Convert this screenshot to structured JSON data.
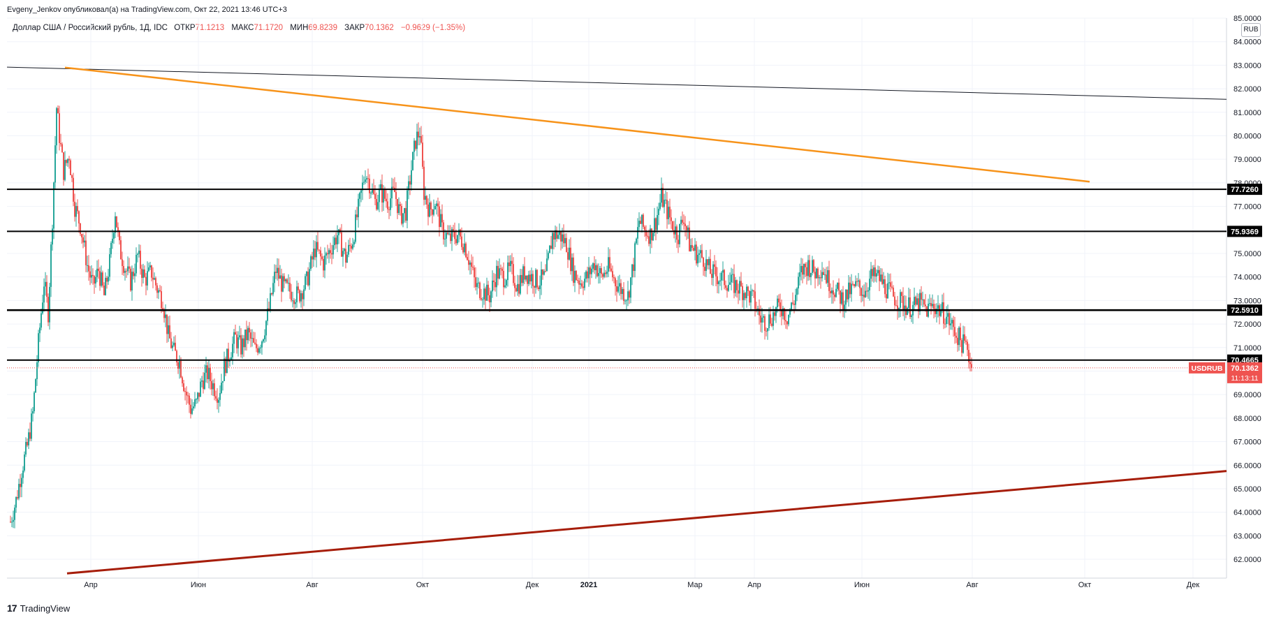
{
  "header": {
    "publisher_line": "Evgeny_Jenkov опубликовал(а) на TradingView.com, Окт 22, 2021 13:46 UTC+3"
  },
  "legend": {
    "symbol_desc": "Доллар США / Российский рубль, 1Д, IDC",
    "open_label": "ОТКР",
    "open_value": "71.1213",
    "high_label": "МАКС",
    "high_value": "71.1720",
    "low_label": "МИН",
    "low_value": "69.8239",
    "close_label": "ЗАКР",
    "close_value": "70.1362",
    "change_value": "−0.9629 (−1.35%)"
  },
  "currency_badge": "RUB",
  "footer": {
    "brand": "TradingView"
  },
  "colors": {
    "up": "#26a69a",
    "down": "#ef5350",
    "resistance_orange": "#f7931a",
    "support_red": "#a61d0a",
    "price_tag": "#ef5350"
  },
  "chart_data": {
    "type": "candlestick",
    "symbol": "USDRUB",
    "interval": "1Д",
    "ylim": [
      61.2,
      85.0
    ],
    "y_ticks": [
      "62.0000",
      "63.0000",
      "64.0000",
      "65.0000",
      "66.0000",
      "67.0000",
      "68.0000",
      "69.0000",
      "70.0000",
      "71.0000",
      "72.0000",
      "73.0000",
      "74.0000",
      "75.0000",
      "76.0000",
      "77.0000",
      "78.0000",
      "79.0000",
      "80.0000",
      "81.0000",
      "82.0000",
      "83.0000",
      "84.0000",
      "85.0000"
    ],
    "x_ticks": [
      "Апр",
      "Июн",
      "Авг",
      "Окт",
      "Дек",
      "2021",
      "Мар",
      "Апр",
      "Июн",
      "Авг",
      "Окт",
      "Дек"
    ],
    "grid": true,
    "horizontal_levels": [
      {
        "value": 77.726,
        "label": "77.7260"
      },
      {
        "value": 75.9369,
        "label": "75.9369"
      },
      {
        "value": 72.591,
        "label": "72.5910"
      },
      {
        "value": 70.4665,
        "label": "70.4665"
      }
    ],
    "last_price": {
      "name": "USDRUB",
      "value": 70.1362,
      "label": "70.1362",
      "countdown": "11:13:11"
    },
    "price_path": [
      [
        0,
        63.6
      ],
      [
        8,
        64.5
      ],
      [
        16,
        65.8
      ],
      [
        24,
        66.8
      ],
      [
        32,
        68.2
      ],
      [
        40,
        71.2
      ],
      [
        48,
        73.8
      ],
      [
        54,
        72.5
      ],
      [
        60,
        76.5
      ],
      [
        66,
        81.2
      ],
      [
        70,
        80.0
      ],
      [
        76,
        78.5
      ],
      [
        84,
        79.2
      ],
      [
        92,
        77.0
      ],
      [
        100,
        76.2
      ],
      [
        110,
        74.5
      ],
      [
        118,
        73.6
      ],
      [
        126,
        74.3
      ],
      [
        134,
        73.2
      ],
      [
        142,
        74.6
      ],
      [
        150,
        76.8
      ],
      [
        156,
        75.2
      ],
      [
        164,
        74.4
      ],
      [
        172,
        73.8
      ],
      [
        182,
        74.9
      ],
      [
        192,
        73.9
      ],
      [
        202,
        74.2
      ],
      [
        210,
        73.5
      ],
      [
        218,
        73.0
      ],
      [
        226,
        71.5
      ],
      [
        234,
        70.8
      ],
      [
        242,
        70.4
      ],
      [
        250,
        69.2
      ],
      [
        258,
        68.4
      ],
      [
        266,
        68.6
      ],
      [
        274,
        69.6
      ],
      [
        282,
        69.9
      ],
      [
        290,
        69.4
      ],
      [
        298,
        69.0
      ],
      [
        306,
        70.2
      ],
      [
        314,
        70.8
      ],
      [
        322,
        71.4
      ],
      [
        330,
        71.0
      ],
      [
        340,
        71.6
      ],
      [
        350,
        70.9
      ],
      [
        360,
        71.4
      ],
      [
        370,
        72.6
      ],
      [
        380,
        74.3
      ],
      [
        390,
        73.6
      ],
      [
        400,
        73.4
      ],
      [
        412,
        73.2
      ],
      [
        424,
        73.8
      ],
      [
        436,
        75.2
      ],
      [
        448,
        74.6
      ],
      [
        458,
        75.2
      ],
      [
        468,
        75.8
      ],
      [
        480,
        74.8
      ],
      [
        490,
        75.6
      ],
      [
        500,
        77.2
      ],
      [
        508,
        78.5
      ],
      [
        514,
        78.0
      ],
      [
        522,
        77.2
      ],
      [
        530,
        77.6
      ],
      [
        540,
        77.2
      ],
      [
        550,
        77.6
      ],
      [
        558,
        76.6
      ],
      [
        566,
        76.8
      ],
      [
        574,
        78.6
      ],
      [
        580,
        79.8
      ],
      [
        586,
        80.2
      ],
      [
        592,
        77.6
      ],
      [
        600,
        76.8
      ],
      [
        608,
        77.2
      ],
      [
        618,
        76.0
      ],
      [
        628,
        75.6
      ],
      [
        640,
        75.8
      ],
      [
        650,
        75.4
      ],
      [
        658,
        74.6
      ],
      [
        666,
        73.6
      ],
      [
        676,
        73.4
      ],
      [
        686,
        73.2
      ],
      [
        696,
        74.2
      ],
      [
        706,
        74.0
      ],
      [
        716,
        74.3
      ],
      [
        726,
        73.6
      ],
      [
        736,
        74.2
      ],
      [
        746,
        74.0
      ],
      [
        756,
        73.8
      ],
      [
        766,
        74.0
      ],
      [
        776,
        75.8
      ],
      [
        786,
        75.8
      ],
      [
        796,
        75.4
      ],
      [
        806,
        74.2
      ],
      [
        816,
        73.8
      ],
      [
        826,
        74.0
      ],
      [
        836,
        74.6
      ],
      [
        846,
        74.0
      ],
      [
        856,
        74.4
      ],
      [
        866,
        73.8
      ],
      [
        876,
        73.4
      ],
      [
        884,
        73.2
      ],
      [
        892,
        74.6
      ],
      [
        900,
        76.4
      ],
      [
        908,
        76.0
      ],
      [
        916,
        75.8
      ],
      [
        924,
        76.4
      ],
      [
        932,
        77.4
      ],
      [
        940,
        76.8
      ],
      [
        948,
        76.2
      ],
      [
        956,
        75.8
      ],
      [
        964,
        76.6
      ],
      [
        972,
        75.4
      ],
      [
        982,
        75.0
      ],
      [
        992,
        74.8
      ],
      [
        1002,
        74.2
      ],
      [
        1014,
        74.0
      ],
      [
        1026,
        73.8
      ],
      [
        1040,
        73.6
      ],
      [
        1052,
        73.4
      ],
      [
        1064,
        73.0
      ],
      [
        1074,
        72.2
      ],
      [
        1082,
        72.1
      ],
      [
        1092,
        72.4
      ],
      [
        1102,
        72.8
      ],
      [
        1112,
        72.3
      ],
      [
        1122,
        73.0
      ],
      [
        1132,
        74.2
      ],
      [
        1142,
        74.5
      ],
      [
        1152,
        74.2
      ],
      [
        1162,
        74.4
      ],
      [
        1172,
        73.8
      ],
      [
        1182,
        73.4
      ],
      [
        1192,
        73.0
      ],
      [
        1202,
        73.4
      ],
      [
        1212,
        73.6
      ],
      [
        1222,
        73.4
      ],
      [
        1232,
        74.0
      ],
      [
        1242,
        74.0
      ],
      [
        1252,
        73.6
      ],
      [
        1262,
        73.2
      ],
      [
        1272,
        73.0
      ],
      [
        1282,
        72.8
      ],
      [
        1292,
        72.7
      ],
      [
        1302,
        72.9
      ],
      [
        1312,
        72.6
      ],
      [
        1322,
        72.8
      ],
      [
        1330,
        72.6
      ],
      [
        1338,
        72.4
      ],
      [
        1346,
        72.0
      ],
      [
        1354,
        71.6
      ],
      [
        1362,
        71.2
      ],
      [
        1370,
        71.0
      ],
      [
        1376,
        70.1
      ]
    ]
  }
}
